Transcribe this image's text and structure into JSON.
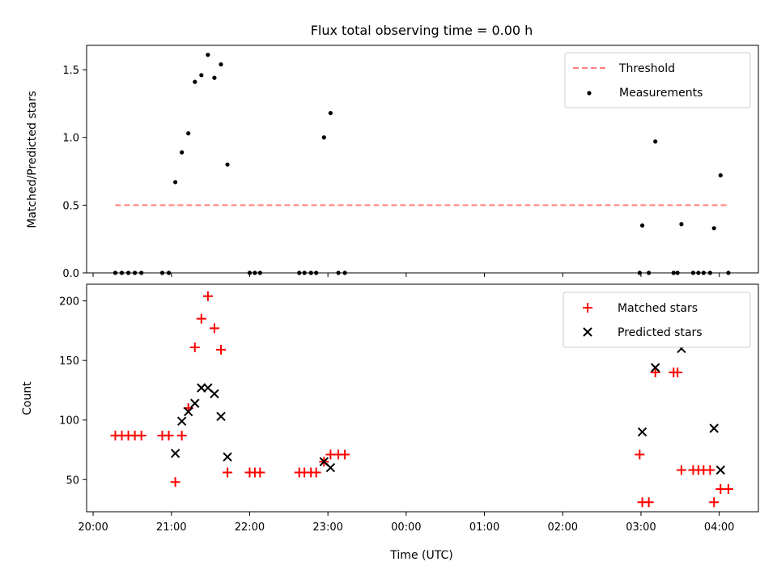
{
  "chart_data": [
    {
      "type": "scatter",
      "title": "Flux total observing time = 0.00 h",
      "xlabel": "",
      "ylabel": "Matched/Predicted stars",
      "xlim": [
        "19:55",
        "04:30"
      ],
      "ylim": [
        0,
        1.68
      ],
      "grid": false,
      "legend_position": "top-right",
      "x_ticks": [
        "20:00",
        "21:00",
        "22:00",
        "23:00",
        "00:00",
        "01:00",
        "02:00",
        "03:00",
        "04:00"
      ],
      "y_ticks": [
        "0.0",
        "0.5",
        "1.0",
        "1.5"
      ],
      "threshold": {
        "name": "Threshold",
        "value": 0.5,
        "x_start": "20:17",
        "x_end": "04:07",
        "color": "#ff7f7f",
        "style": "dashed"
      },
      "series": [
        {
          "name": "Measurements",
          "marker": "dot",
          "color": "#000000",
          "points": [
            [
              "20:17",
              0
            ],
            [
              "20:22",
              0
            ],
            [
              "20:27",
              0
            ],
            [
              "20:32",
              0
            ],
            [
              "20:37",
              0
            ],
            [
              "20:53",
              0
            ],
            [
              "20:58",
              0
            ],
            [
              "21:03",
              0.67
            ],
            [
              "21:08",
              0.89
            ],
            [
              "21:13",
              1.03
            ],
            [
              "21:18",
              1.41
            ],
            [
              "21:23",
              1.46
            ],
            [
              "21:28",
              1.61
            ],
            [
              "21:33",
              1.44
            ],
            [
              "21:38",
              1.54
            ],
            [
              "21:43",
              0.8
            ],
            [
              "22:00",
              0
            ],
            [
              "22:04",
              0
            ],
            [
              "22:08",
              0
            ],
            [
              "22:38",
              0
            ],
            [
              "22:42",
              0
            ],
            [
              "22:47",
              0
            ],
            [
              "22:51",
              0
            ],
            [
              "22:57",
              1.0
            ],
            [
              "23:02",
              1.18
            ],
            [
              "23:08",
              0
            ],
            [
              "23:13",
              0
            ],
            [
              "02:59",
              0
            ],
            [
              "03:01",
              0.35
            ],
            [
              "03:06",
              0
            ],
            [
              "03:11",
              0.97
            ],
            [
              "03:25",
              0
            ],
            [
              "03:28",
              0
            ],
            [
              "03:31",
              0.36
            ],
            [
              "03:40",
              0
            ],
            [
              "03:44",
              0
            ],
            [
              "03:48",
              0
            ],
            [
              "03:53",
              0
            ],
            [
              "03:56",
              0.33
            ],
            [
              "04:01",
              0.72
            ],
            [
              "04:07",
              0
            ]
          ]
        }
      ]
    },
    {
      "type": "scatter",
      "title": "",
      "xlabel": "Time (UTC)",
      "ylabel": "Count",
      "xlim": [
        "19:55",
        "04:30"
      ],
      "ylim": [
        23,
        214
      ],
      "grid": false,
      "legend_position": "top-right",
      "x_ticks": [
        "20:00",
        "21:00",
        "22:00",
        "23:00",
        "00:00",
        "01:00",
        "02:00",
        "03:00",
        "04:00"
      ],
      "y_ticks": [
        "50",
        "100",
        "150",
        "200"
      ],
      "series": [
        {
          "name": "Matched stars",
          "marker": "plus",
          "color": "#ff0000",
          "points": [
            [
              "20:17",
              87
            ],
            [
              "20:22",
              87
            ],
            [
              "20:27",
              87
            ],
            [
              "20:32",
              87
            ],
            [
              "20:37",
              87
            ],
            [
              "20:53",
              87
            ],
            [
              "20:58",
              87
            ],
            [
              "21:03",
              48
            ],
            [
              "21:08",
              87
            ],
            [
              "21:13",
              110
            ],
            [
              "21:18",
              161
            ],
            [
              "21:23",
              185
            ],
            [
              "21:28",
              204
            ],
            [
              "21:33",
              177
            ],
            [
              "21:38",
              159
            ],
            [
              "21:43",
              56
            ],
            [
              "22:00",
              56
            ],
            [
              "22:04",
              56
            ],
            [
              "22:08",
              56
            ],
            [
              "22:38",
              56
            ],
            [
              "22:42",
              56
            ],
            [
              "22:47",
              56
            ],
            [
              "22:51",
              56
            ],
            [
              "22:57",
              65
            ],
            [
              "23:02",
              71
            ],
            [
              "23:08",
              71
            ],
            [
              "23:13",
              71
            ],
            [
              "02:59",
              71
            ],
            [
              "03:01",
              31
            ],
            [
              "03:06",
              31
            ],
            [
              "03:11",
              140
            ],
            [
              "03:25",
              140
            ],
            [
              "03:28",
              140
            ],
            [
              "03:31",
              58
            ],
            [
              "03:40",
              58
            ],
            [
              "03:44",
              58
            ],
            [
              "03:48",
              58
            ],
            [
              "03:53",
              58
            ],
            [
              "03:56",
              31
            ],
            [
              "04:01",
              42
            ],
            [
              "04:07",
              42
            ]
          ]
        },
        {
          "name": "Predicted stars",
          "marker": "x",
          "color": "#000000",
          "points": [
            [
              "21:03",
              72
            ],
            [
              "21:08",
              99
            ],
            [
              "21:13",
              107
            ],
            [
              "21:18",
              114
            ],
            [
              "21:23",
              127
            ],
            [
              "21:28",
              127
            ],
            [
              "21:33",
              122
            ],
            [
              "21:38",
              103
            ],
            [
              "21:43",
              69
            ],
            [
              "22:57",
              65
            ],
            [
              "23:02",
              60
            ],
            [
              "03:01",
              90
            ],
            [
              "03:11",
              144
            ],
            [
              "03:31",
              160
            ],
            [
              "03:56",
              93
            ],
            [
              "04:01",
              58
            ]
          ]
        }
      ]
    }
  ]
}
